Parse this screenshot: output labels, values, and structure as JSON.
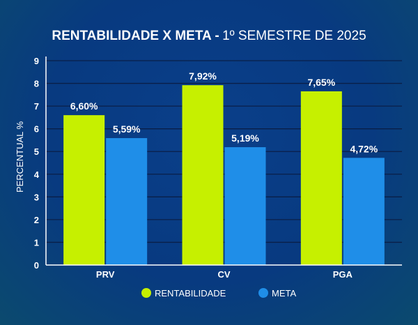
{
  "chart_data": {
    "type": "bar",
    "title_bold": "RENTABILIDADE X META -",
    "title_rest": "1º SEMESTRE DE 2025",
    "ylabel": "PERCENTUAL %",
    "xlabel": "",
    "ylim": [
      0,
      9
    ],
    "yticks": [
      "0",
      "1",
      "2",
      "3",
      "4",
      "5",
      "6",
      "7",
      "8",
      "9"
    ],
    "grid": true,
    "legend_position": "bottom",
    "categories": [
      "PRV",
      "CV",
      "PGA"
    ],
    "series": [
      {
        "name": "RENTABILIDADE",
        "color": "#c6f000",
        "values": [
          6.6,
          7.92,
          7.65
        ],
        "labels": [
          "6,60%",
          "7,92%",
          "7,65%"
        ]
      },
      {
        "name": "META",
        "color": "#1f8ee8",
        "values": [
          5.59,
          5.19,
          4.72
        ],
        "labels": [
          "5,59%",
          "5,19%",
          "4,72%"
        ]
      }
    ]
  }
}
